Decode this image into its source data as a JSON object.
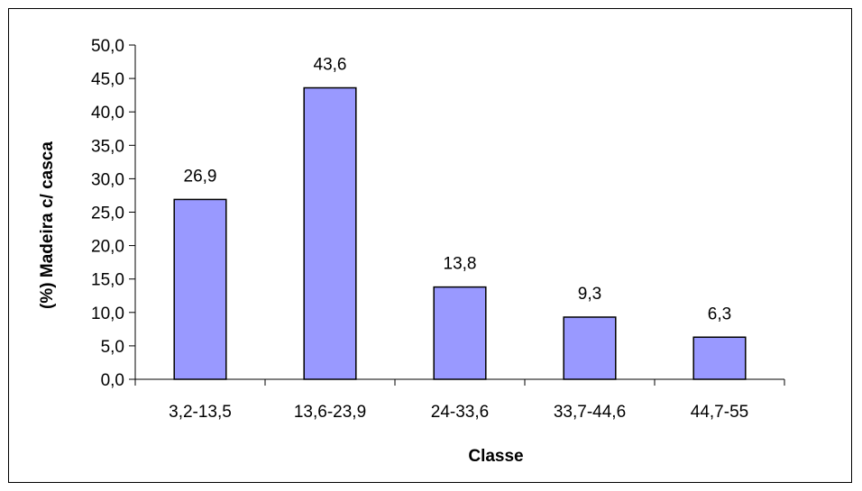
{
  "chart_data": {
    "type": "bar",
    "title": "",
    "xlabel": "Classe",
    "ylabel": "(%) Madeira c/ casca",
    "categories": [
      "3,2-13,5",
      "13,6-23,9",
      "24-33,6",
      "33,7-44,6",
      "44,7-55"
    ],
    "values": [
      26.9,
      43.6,
      13.8,
      9.3,
      6.3
    ],
    "value_labels": [
      "26,9",
      "43,6",
      "13,8",
      "9,3",
      "6,3"
    ],
    "ylim": [
      0,
      50
    ],
    "yticks": [
      0,
      5,
      10,
      15,
      20,
      25,
      30,
      35,
      40,
      45,
      50
    ],
    "ytick_labels": [
      "0,0",
      "5,0",
      "10,0",
      "15,0",
      "20,0",
      "25,0",
      "30,0",
      "35,0",
      "40,0",
      "45,0",
      "50,0"
    ],
    "grid": false,
    "legend": "none",
    "colors": {
      "bar_fill": "#9999ff",
      "bar_stroke": "#000000"
    }
  }
}
